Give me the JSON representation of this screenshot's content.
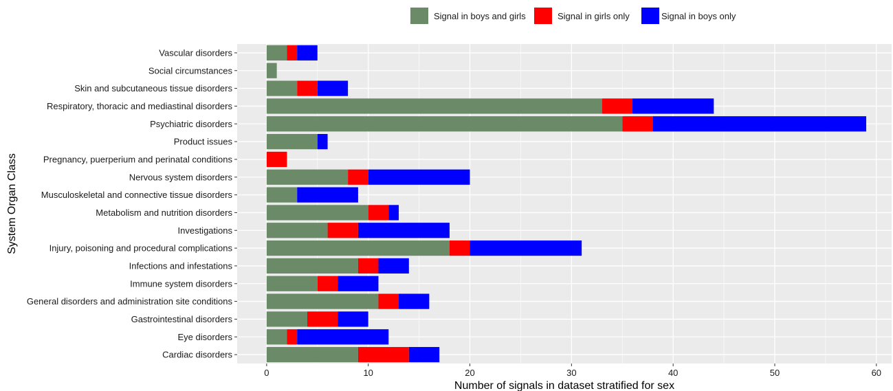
{
  "chart_data": {
    "type": "bar",
    "orientation": "horizontal",
    "stacked": true,
    "xlabel": "Number of signals in dataset stratified for sex",
    "ylabel": "System Organ Class",
    "xlim": [
      -2.9,
      61.5
    ],
    "xticks": [
      0,
      10,
      20,
      30,
      40,
      50,
      60
    ],
    "grid": true,
    "legend_position": "top",
    "categories": [
      "Vascular disorders",
      "Social circumstances",
      "Skin and subcutaneous tissue disorders",
      "Respiratory, thoracic and mediastinal disorders",
      "Psychiatric disorders",
      "Product issues",
      "Pregnancy, puerperium and perinatal conditions",
      "Nervous system disorders",
      "Musculoskeletal and connective tissue disorders",
      "Metabolism and nutrition disorders",
      "Investigations",
      "Injury, poisoning and procedural complications",
      "Infections and infestations",
      "Immune system disorders",
      "General disorders and administration site conditions",
      "Gastrointestinal disorders",
      "Eye disorders",
      "Cardiac disorders"
    ],
    "series": [
      {
        "name": "Signal in boys and girls",
        "color": "#6b8a68",
        "values": [
          2,
          1,
          3,
          33,
          35,
          5,
          0,
          8,
          3,
          10,
          6,
          18,
          9,
          5,
          11,
          4,
          2,
          9
        ]
      },
      {
        "name": "Signal in girls only",
        "color": "#ff0000",
        "values": [
          1,
          0,
          2,
          3,
          3,
          0,
          2,
          2,
          0,
          2,
          3,
          2,
          2,
          2,
          2,
          3,
          1,
          5
        ]
      },
      {
        "name": "Signal in boys only",
        "color": "#0000ff",
        "values": [
          2,
          0,
          3,
          8,
          21,
          1,
          0,
          10,
          6,
          1,
          9,
          11,
          3,
          4,
          3,
          3,
          9,
          3
        ]
      }
    ]
  }
}
